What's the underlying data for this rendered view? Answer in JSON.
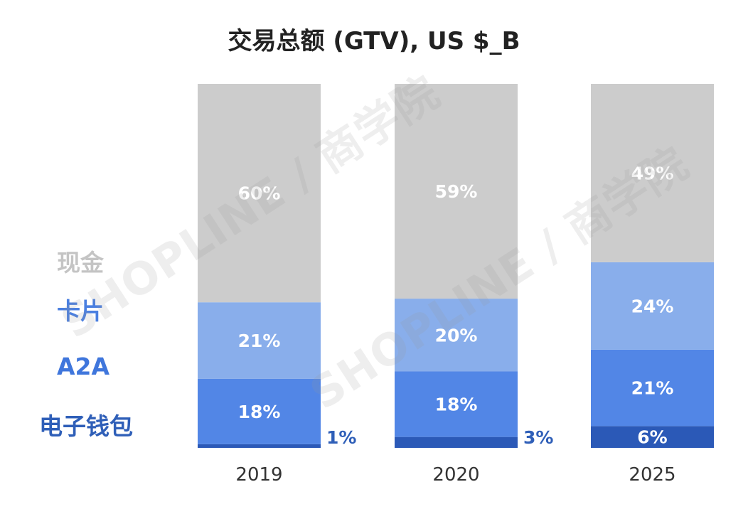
{
  "chart_data": {
    "type": "bar",
    "stacked": true,
    "title": "交易总额 (GTV), US $_B",
    "categories": [
      "2019",
      "2020",
      "2025"
    ],
    "series": [
      {
        "name": "电子钱包",
        "color": "#2b59b7",
        "values": [
          1,
          3,
          6
        ],
        "labels": [
          "1%",
          "3%",
          "6%"
        ]
      },
      {
        "name": "A2A",
        "color": "#5286e6",
        "values": [
          18,
          18,
          21
        ],
        "labels": [
          "18%",
          "18%",
          "21%"
        ]
      },
      {
        "name": "卡片",
        "color": "#89aeeb",
        "values": [
          21,
          20,
          24
        ],
        "labels": [
          "21%",
          "20%",
          "24%"
        ]
      },
      {
        "name": "现金",
        "color": "#cccccc",
        "values": [
          60,
          59,
          49
        ],
        "labels": [
          "60%",
          "59%",
          "49%"
        ]
      }
    ],
    "legend": [
      {
        "label": "现金",
        "color": "#cccccc"
      },
      {
        "label": "卡片",
        "color": "#89aeeb"
      },
      {
        "label": "A2A",
        "color": "#5286e6"
      },
      {
        "label": "电子钱包",
        "color": "#2b59b7"
      }
    ],
    "ylim": [
      0,
      100
    ],
    "xlabel": "",
    "ylabel": "",
    "grid": false
  },
  "watermark": {
    "text": "SHOPLINE / 商学院"
  }
}
